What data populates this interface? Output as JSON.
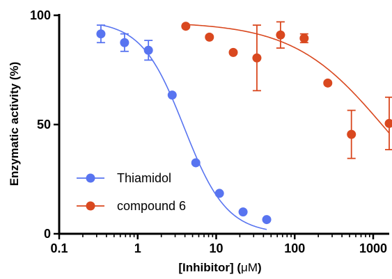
{
  "chart_data": {
    "type": "scatter",
    "xlabel_prefix": "[Inhibitor] (",
    "xlabel_unit": "μM",
    "xlabel_suffix": ")",
    "ylabel": "Enzymatic activity (%)",
    "x_scale": "log",
    "xlim": [
      0.1,
      1600
    ],
    "ylim": [
      0,
      100
    ],
    "x_ticks": [
      {
        "value": 0.1,
        "label": "0.1"
      },
      {
        "value": 1,
        "label": "1"
      },
      {
        "value": 10,
        "label": "10"
      },
      {
        "value": 100,
        "label": "100"
      },
      {
        "value": 1000,
        "label": "1000"
      }
    ],
    "y_ticks": [
      {
        "value": 0,
        "label": "0"
      },
      {
        "value": 50,
        "label": "50"
      },
      {
        "value": 100,
        "label": "100"
      }
    ],
    "legend_position": "bottom-left",
    "grid": false,
    "series": [
      {
        "name": "Thiamidol",
        "color": "#5874f0",
        "points": [
          {
            "x": 0.34,
            "y": 91.5,
            "err": 4
          },
          {
            "x": 0.68,
            "y": 87.5,
            "err": 4
          },
          {
            "x": 1.37,
            "y": 84.0,
            "err": 4.5
          },
          {
            "x": 2.75,
            "y": 63.5,
            "err": 0
          },
          {
            "x": 5.5,
            "y": 32.5,
            "err": 0
          },
          {
            "x": 11,
            "y": 18.5,
            "err": 0
          },
          {
            "x": 22,
            "y": 10.0,
            "err": 0
          },
          {
            "x": 44,
            "y": 6.5,
            "err": 0
          }
        ],
        "fit": {
          "top": 97.5,
          "bottom": 0,
          "ic50": 3.9,
          "hill": 1.6,
          "x_range": [
            0.34,
            44
          ]
        }
      },
      {
        "name": "compound 6",
        "color": "#d9481f",
        "points": [
          {
            "x": 4.1,
            "y": 95.0,
            "err": 0
          },
          {
            "x": 8.2,
            "y": 90.0,
            "err": 0
          },
          {
            "x": 16.5,
            "y": 83.0,
            "err": 0
          },
          {
            "x": 33,
            "y": 80.5,
            "err": 15
          },
          {
            "x": 66,
            "y": 91.0,
            "err": 6
          },
          {
            "x": 132,
            "y": 89.5,
            "err": 2
          },
          {
            "x": 264,
            "y": 69.0,
            "err": 0
          },
          {
            "x": 528,
            "y": 45.5,
            "err": 11
          },
          {
            "x": 1600,
            "y": 50.5,
            "err": 12
          }
        ],
        "fit": {
          "top": 97,
          "bottom": 0,
          "ic50": 1400,
          "hill": 0.75,
          "x_range": [
            4.1,
            1600
          ]
        }
      }
    ]
  }
}
